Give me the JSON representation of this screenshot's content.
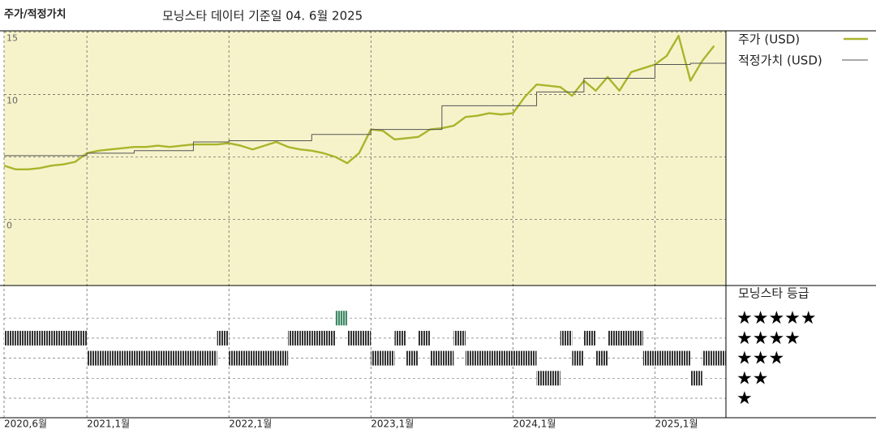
{
  "chart_data": {
    "type": "line",
    "title": "주가/적정가치",
    "subtitle": "모닝스타 데이터 기준일 04. 6월 2025",
    "x": [
      "2020-06",
      "2020-07",
      "2020-08",
      "2020-09",
      "2020-10",
      "2020-11",
      "2020-12",
      "2021-01",
      "2021-02",
      "2021-03",
      "2021-04",
      "2021-05",
      "2021-06",
      "2021-07",
      "2021-08",
      "2021-09",
      "2021-10",
      "2021-11",
      "2021-12",
      "2022-01",
      "2022-02",
      "2022-03",
      "2022-04",
      "2022-05",
      "2022-06",
      "2022-07",
      "2022-08",
      "2022-09",
      "2022-10",
      "2022-11",
      "2022-12",
      "2023-01",
      "2023-02",
      "2023-03",
      "2023-04",
      "2023-05",
      "2023-06",
      "2023-07",
      "2023-08",
      "2023-09",
      "2023-10",
      "2023-11",
      "2023-12",
      "2024-01",
      "2024-02",
      "2024-03",
      "2024-04",
      "2024-05",
      "2024-06",
      "2024-07",
      "2024-08",
      "2024-09",
      "2024-10",
      "2024-11",
      "2024-12",
      "2025-01",
      "2025-02",
      "2025-03",
      "2025-04",
      "2025-05",
      "2025-06"
    ],
    "series": [
      {
        "name": "주가 (USD)",
        "color": "#a9b52b",
        "width": 2.4,
        "step": false,
        "values": [
          4.3,
          4.0,
          4.0,
          4.1,
          4.3,
          4.4,
          4.6,
          5.3,
          5.5,
          5.6,
          5.7,
          5.8,
          5.8,
          5.9,
          5.8,
          5.9,
          6.0,
          6.0,
          6.0,
          6.1,
          5.9,
          5.6,
          5.9,
          6.2,
          5.8,
          5.6,
          5.5,
          5.3,
          5.0,
          4.5,
          5.3,
          7.2,
          7.1,
          6.4,
          6.5,
          6.6,
          7.2,
          7.3,
          7.5,
          8.2,
          8.3,
          8.5,
          8.4,
          8.5,
          9.8,
          10.8,
          10.7,
          10.6,
          9.9,
          11.1,
          10.3,
          11.4,
          10.3,
          11.8,
          12.1,
          12.4,
          13.1,
          14.7,
          11.1,
          12.7,
          13.9
        ]
      },
      {
        "name": "적정가치 (USD)",
        "color": "#555555",
        "width": 1,
        "step": true,
        "values": [
          5.1,
          5.1,
          5.1,
          5.1,
          5.1,
          5.1,
          5.1,
          5.3,
          5.3,
          5.3,
          5.3,
          5.5,
          5.5,
          5.5,
          5.5,
          5.5,
          6.2,
          6.2,
          6.2,
          6.3,
          6.3,
          6.3,
          6.3,
          6.3,
          6.3,
          6.3,
          6.8,
          6.8,
          6.8,
          6.8,
          6.8,
          7.2,
          7.2,
          7.2,
          7.2,
          7.2,
          7.2,
          9.1,
          9.1,
          9.1,
          9.1,
          9.1,
          9.1,
          9.1,
          9.1,
          10.2,
          10.2,
          10.2,
          10.2,
          11.3,
          11.3,
          11.3,
          11.3,
          11.3,
          11.3,
          12.4,
          12.4,
          12.4,
          12.5,
          12.5,
          12.5
        ]
      }
    ],
    "xlim": [
      "2020-06",
      "2025-07"
    ],
    "xticks": [
      {
        "value": "2020-06",
        "label": "2020,6월"
      },
      {
        "value": "2021-01",
        "label": "2021,1월"
      },
      {
        "value": "2022-01",
        "label": "2022,1월"
      },
      {
        "value": "2023-01",
        "label": "2023,1월"
      },
      {
        "value": "2024-01",
        "label": "2024,1월"
      },
      {
        "value": "2025-01",
        "label": "2025,1월"
      }
    ],
    "ylim": [
      -5.3,
      15.1
    ],
    "yticks": [
      0,
      {
        "value": 5,
        "label": null
      },
      10,
      15
    ],
    "grid": true,
    "rating_title": "모닝스타 등급",
    "rating_color": "#333333",
    "rating_top_color": "#3f8a68",
    "ratings": [
      4,
      4,
      4,
      4,
      4,
      4,
      4,
      3,
      3,
      3,
      3,
      3,
      3,
      3,
      3,
      3,
      3,
      3,
      4,
      3,
      3,
      3,
      3,
      3,
      4,
      4,
      4,
      4,
      5,
      4,
      4,
      3,
      3,
      4,
      3,
      4,
      3,
      3,
      4,
      3,
      3,
      3,
      3,
      3,
      3,
      2,
      2,
      4,
      3,
      4,
      3,
      4,
      4,
      4,
      3,
      3,
      3,
      3,
      2,
      3,
      3
    ],
    "rating_ticks": [
      {
        "value": 5,
        "label": "★★★★★"
      },
      {
        "value": 4,
        "label": "★★★★"
      },
      {
        "value": 3,
        "label": "★★★"
      },
      {
        "value": 2,
        "label": "★★"
      },
      {
        "value": 1,
        "label": "★"
      }
    ]
  }
}
